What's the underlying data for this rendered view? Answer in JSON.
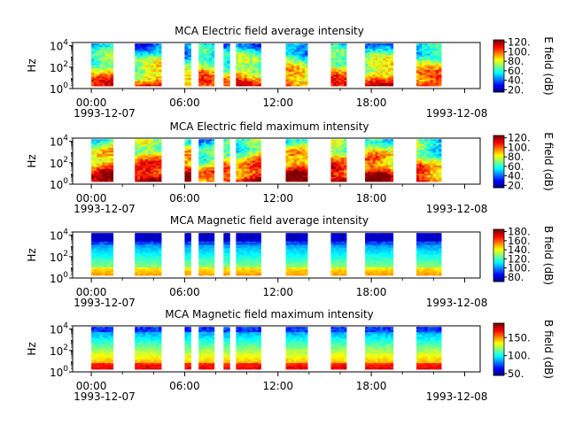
{
  "chart_data": [
    {
      "type": "heatmap",
      "title": "MCA  Electric field average intensity",
      "ylabel": "Hz",
      "colorbar_label": "E field (dB)",
      "colorbar_ticks": [
        "20.",
        "40.",
        "60.",
        "80.",
        "100.",
        "120."
      ],
      "colorbar_range": [
        15,
        125
      ],
      "y_log": true,
      "ylim": [
        1,
        20000
      ],
      "y_ticks": [
        {
          "base": "10",
          "exp": "0"
        },
        {
          "base": "10",
          "exp": "2"
        },
        {
          "base": "10",
          "exp": "4"
        }
      ],
      "x_ticks": [
        "00:00",
        "06:00",
        "12:00",
        "18:00",
        ""
      ],
      "x_start_date": "1993-12-07",
      "x_end_date": "1993-12-08",
      "x_range_hours": [
        -1.2,
        25.0
      ],
      "data_segments_hours": [
        [
          0.0,
          1.4
        ],
        [
          2.8,
          4.5
        ],
        [
          6.0,
          6.4
        ],
        [
          6.9,
          7.9
        ],
        [
          8.5,
          8.9
        ],
        [
          9.3,
          10.9
        ],
        [
          12.5,
          13.9
        ],
        [
          15.4,
          16.4
        ],
        [
          17.6,
          19.4
        ],
        [
          20.9,
          22.5
        ]
      ],
      "style": "electric-avg"
    },
    {
      "type": "heatmap",
      "title": "MCA  Electric field maximum intensity",
      "ylabel": "Hz",
      "colorbar_label": "E field (dB)",
      "colorbar_ticks": [
        "20.",
        "40.",
        "60.",
        "80.",
        "100.",
        "120."
      ],
      "colorbar_range": [
        15,
        125
      ],
      "y_log": true,
      "ylim": [
        1,
        20000
      ],
      "y_ticks": [
        {
          "base": "10",
          "exp": "0"
        },
        {
          "base": "10",
          "exp": "2"
        },
        {
          "base": "10",
          "exp": "4"
        }
      ],
      "x_ticks": [
        "00:00",
        "06:00",
        "12:00",
        "18:00",
        ""
      ],
      "x_start_date": "1993-12-07",
      "x_end_date": "1993-12-08",
      "x_range_hours": [
        -1.2,
        25.0
      ],
      "data_segments_hours": [
        [
          0.0,
          1.4
        ],
        [
          2.8,
          4.5
        ],
        [
          6.0,
          6.4
        ],
        [
          6.9,
          7.9
        ],
        [
          8.5,
          8.9
        ],
        [
          9.3,
          10.9
        ],
        [
          12.5,
          13.9
        ],
        [
          15.4,
          16.4
        ],
        [
          17.6,
          19.4
        ],
        [
          20.9,
          22.5
        ]
      ],
      "style": "electric-max"
    },
    {
      "type": "heatmap",
      "title": "MCA  Magnetic field average intensity",
      "ylabel": "Hz",
      "colorbar_label": "B field (dB)",
      "colorbar_ticks": [
        "80.",
        "100.",
        "120.",
        "140.",
        "160.",
        "180."
      ],
      "colorbar_range": [
        70,
        185
      ],
      "y_log": true,
      "ylim": [
        1,
        20000
      ],
      "y_ticks": [
        {
          "base": "10",
          "exp": "0"
        },
        {
          "base": "10",
          "exp": "2"
        },
        {
          "base": "10",
          "exp": "4"
        }
      ],
      "x_ticks": [
        "00:00",
        "06:00",
        "12:00",
        "18:00",
        ""
      ],
      "x_start_date": "1993-12-07",
      "x_end_date": "1993-12-08",
      "x_range_hours": [
        -1.2,
        25.0
      ],
      "data_segments_hours": [
        [
          0.0,
          1.4
        ],
        [
          2.8,
          4.5
        ],
        [
          6.0,
          6.4
        ],
        [
          6.9,
          7.9
        ],
        [
          8.5,
          8.9
        ],
        [
          9.3,
          10.9
        ],
        [
          12.5,
          13.9
        ],
        [
          15.4,
          16.4
        ],
        [
          17.6,
          19.4
        ],
        [
          20.9,
          22.5
        ]
      ],
      "style": "magnetic-avg"
    },
    {
      "type": "heatmap",
      "title": "MCA  Magnetic field maximum intensity",
      "ylabel": "Hz",
      "colorbar_label": "B field (dB)",
      "colorbar_ticks": [
        "50.",
        "100.",
        "150."
      ],
      "colorbar_range": [
        45,
        190
      ],
      "y_log": true,
      "ylim": [
        1,
        20000
      ],
      "y_ticks": [
        {
          "base": "10",
          "exp": "0"
        },
        {
          "base": "10",
          "exp": "2"
        },
        {
          "base": "10",
          "exp": "4"
        }
      ],
      "x_ticks": [
        "00:00",
        "06:00",
        "12:00",
        "18:00",
        ""
      ],
      "x_start_date": "1993-12-07",
      "x_end_date": "1993-12-08",
      "x_range_hours": [
        -1.2,
        25.0
      ],
      "data_segments_hours": [
        [
          0.0,
          1.4
        ],
        [
          2.8,
          4.5
        ],
        [
          6.0,
          6.4
        ],
        [
          6.9,
          7.9
        ],
        [
          8.5,
          8.9
        ],
        [
          9.3,
          10.9
        ],
        [
          12.5,
          13.9
        ],
        [
          15.4,
          16.4
        ],
        [
          17.6,
          19.4
        ],
        [
          20.9,
          22.5
        ]
      ],
      "style": "magnetic-max"
    }
  ]
}
